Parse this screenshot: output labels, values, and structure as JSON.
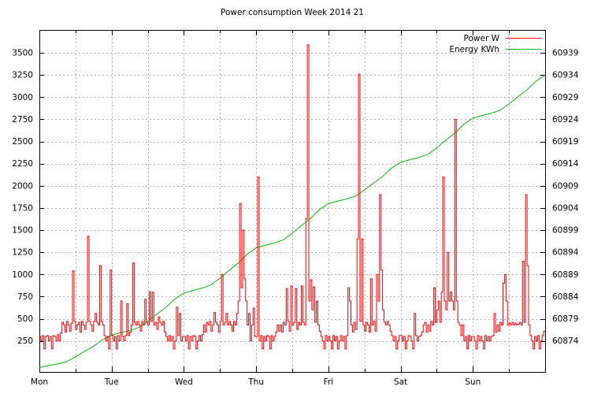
{
  "page": {
    "title": "Power consumption Week 2014 21"
  },
  "chart_data": {
    "type": "line",
    "title": "Power consumption Week 2014 21",
    "grid": true,
    "background_color": "#ffffff",
    "grid_color": "#b4b4b4",
    "legend_position": "top-right-inside",
    "legend": [
      {
        "label": "Power W",
        "color": "#ff0000"
      },
      {
        "label": "Energy KWh",
        "color": "#00c000"
      }
    ],
    "x_axis": {
      "tick_labels": [
        "Mon",
        "Tue",
        "Wed",
        "Thu",
        "Fri",
        "Sat",
        "Sun"
      ],
      "days": 7,
      "gridlines_per_day": 2
    },
    "y_left": {
      "ticks": [
        250,
        500,
        750,
        1000,
        1250,
        1500,
        1750,
        2000,
        2250,
        2500,
        2750,
        3000,
        3250,
        3500
      ],
      "range": [
        -100,
        3758
      ],
      "unit": "W"
    },
    "y_right": {
      "ticks": [
        60874,
        60879,
        60884,
        60889,
        60894,
        60899,
        60904,
        60909,
        60914,
        60919,
        60924,
        60929,
        60934,
        60939
      ],
      "range": [
        60867.0,
        60944.2
      ],
      "unit": "KWh"
    },
    "series": [
      {
        "name": "Power W",
        "axis": "left",
        "color": "#ff0000",
        "style": "steps",
        "sample_interval_hours": 0.5,
        "values_by_day": {
          "Mon": [
            300,
            250,
            310,
            160,
            300,
            310,
            250,
            300,
            160,
            310,
            300,
            250,
            320,
            250,
            340,
            460,
            430,
            350,
            470,
            430,
            360,
            450,
            1040,
            470,
            380,
            430,
            460,
            350,
            470,
            430,
            380,
            460,
            1430,
            470,
            430,
            360,
            470,
            560,
            460,
            430,
            1100,
            470,
            430,
            310,
            250,
            300,
            160,
            1050
          ],
          "Tue": [
            310,
            250,
            300,
            160,
            310,
            250,
            700,
            300,
            250,
            310,
            670,
            310,
            350,
            430,
            1130,
            460,
            430,
            470,
            430,
            360,
            470,
            430,
            720,
            460,
            430,
            805,
            470,
            800,
            430,
            460,
            380,
            520,
            460,
            430,
            470,
            350,
            300,
            250,
            310,
            250,
            300,
            160,
            250,
            630,
            310,
            560,
            250,
            300
          ],
          "Wed": [
            300,
            250,
            310,
            160,
            300,
            250,
            310,
            300,
            160,
            250,
            310,
            250,
            320,
            430,
            350,
            460,
            430,
            470,
            360,
            430,
            570,
            460,
            430,
            350,
            470,
            1000,
            430,
            460,
            560,
            430,
            470,
            430,
            360,
            470,
            430,
            560,
            700,
            1800,
            850,
            1500,
            950,
            700,
            430,
            560,
            250,
            430,
            620,
            300
          ],
          "Thu": [
            300,
            2100,
            250,
            310,
            160,
            300,
            250,
            310,
            300,
            160,
            310,
            250,
            300,
            350,
            430,
            360,
            430,
            350,
            460,
            430,
            840,
            470,
            360,
            870,
            430,
            460,
            840,
            380,
            460,
            430,
            870,
            460,
            430,
            1630,
            3590,
            700,
            940,
            600,
            860,
            460,
            700,
            430,
            360,
            300,
            250,
            160,
            310,
            250
          ],
          "Fri": [
            300,
            250,
            160,
            310,
            250,
            300,
            160,
            250,
            310,
            250,
            300,
            160,
            310,
            850,
            700,
            430,
            350,
            460,
            380,
            1400,
            3260,
            470,
            1400,
            430,
            360,
            460,
            430,
            350,
            950,
            430,
            470,
            360,
            1000,
            700,
            1900,
            1050,
            600,
            460,
            430,
            470,
            430,
            360,
            310,
            250,
            300,
            160,
            250,
            310
          ],
          "Sat": [
            310,
            250,
            300,
            160,
            250,
            310,
            300,
            250,
            160,
            560,
            310,
            250,
            300,
            310,
            350,
            430,
            460,
            350,
            430,
            360,
            470,
            430,
            850,
            460,
            600,
            700,
            460,
            800,
            2100,
            700,
            600,
            1250,
            700,
            800,
            700,
            600,
            2750,
            700,
            460,
            430,
            310,
            430,
            250,
            300,
            160,
            310,
            250,
            300
          ],
          "Sun": [
            300,
            250,
            160,
            310,
            250,
            300,
            250,
            160,
            310,
            250,
            300,
            250,
            300,
            310,
            560,
            350,
            430,
            360,
            460,
            430,
            900,
            1000,
            700,
            430,
            450,
            430,
            460,
            430,
            450,
            430,
            440,
            460,
            430,
            1150,
            460,
            1900,
            1100,
            430,
            310,
            250,
            160,
            300,
            250,
            310,
            160,
            250,
            310,
            360
          ]
        }
      },
      {
        "name": "Energy KWh",
        "axis": "right",
        "color": "#00c000",
        "style": "line",
        "sample_interval_hours": 3,
        "values": [
          60868.0,
          60868.44,
          60868.8,
          60869.31,
          60870.41,
          60871.65,
          60872.82,
          60874.28,
          60875.3,
          60875.87,
          60876.35,
          60877.01,
          60878.44,
          60880.05,
          60881.57,
          60883.47,
          60884.8,
          60885.41,
          60885.92,
          60886.64,
          60888.17,
          60889.9,
          60891.53,
          60893.57,
          60895.0,
          60895.6,
          60896.1,
          60896.8,
          60898.3,
          60900.0,
          60901.6,
          60903.6,
          60905.0,
          60905.56,
          60906.02,
          60906.67,
          60908.07,
          60909.65,
          60911.14,
          60913.0,
          60914.3,
          60914.9,
          60915.4,
          60916.1,
          60917.6,
          60919.3,
          60920.9,
          60922.9,
          60924.3,
          60924.88,
          60925.37,
          60926.05,
          60927.5,
          60929.15,
          60930.7,
          60932.64,
          60934.0
        ]
      }
    ]
  }
}
